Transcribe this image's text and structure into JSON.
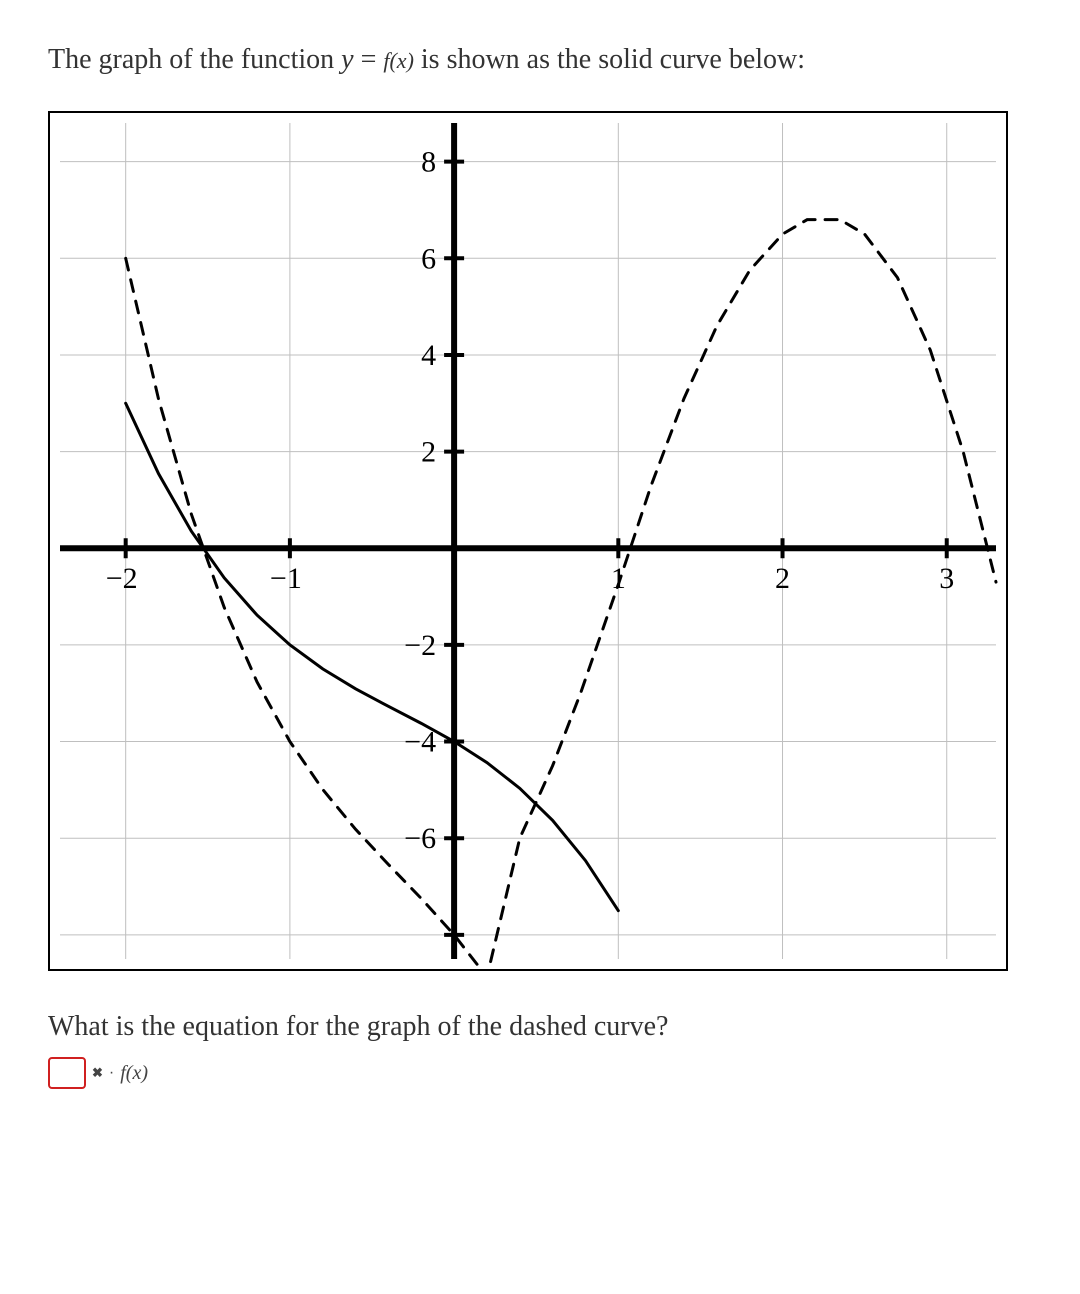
{
  "intro": {
    "prefix": "The graph of the function ",
    "var_y": "y",
    "eq": " = ",
    "fn": "f(x)",
    "suffix": " is shown as the solid curve below:"
  },
  "chart": {
    "type": "line",
    "xlim": [
      -2.4,
      3.3
    ],
    "ylim": [
      -8.5,
      8.8
    ],
    "xtick_step": 1,
    "ytick_step": 2,
    "xticks": [
      -2,
      -1,
      1,
      2,
      3
    ],
    "yticks": [
      8,
      6,
      4,
      2,
      -2,
      -4,
      -6
    ],
    "background_color": "#ffffff",
    "grid_color": "#bfbfbf",
    "grid_width": 1,
    "axis_color": "#000000",
    "axis_width": 6,
    "tick_color": "#000000",
    "tick_length": 10,
    "tick_width": 4,
    "axis_label_fontsize": 30,
    "axis_label_color": "#000000",
    "solid_curve": {
      "color": "#000000",
      "width": 3,
      "dash": "none",
      "points": [
        [
          -2.0,
          3.0
        ],
        [
          -1.8,
          1.544
        ],
        [
          -1.6,
          0.352
        ],
        [
          -1.4,
          -0.612
        ],
        [
          -1.2,
          -1.384
        ],
        [
          -1.0,
          -2.0
        ],
        [
          -0.8,
          -2.496
        ],
        [
          -0.6,
          -2.908
        ],
        [
          -0.4,
          -3.272
        ],
        [
          -0.2,
          -3.624
        ],
        [
          0.0,
          -4.0
        ],
        [
          0.2,
          -4.436
        ],
        [
          0.4,
          -4.968
        ],
        [
          0.6,
          -5.632
        ],
        [
          0.8,
          -6.464
        ],
        [
          1.0,
          -7.5
        ]
      ]
    },
    "dashed_curve": {
      "color": "#000000",
      "width": 3,
      "dash": "12 10",
      "points": [
        [
          -2.0,
          6.0
        ],
        [
          -1.8,
          3.088
        ],
        [
          -1.6,
          0.704
        ],
        [
          -1.4,
          -1.224
        ],
        [
          -1.2,
          -2.768
        ],
        [
          -1.0,
          -4.0
        ],
        [
          -0.8,
          -4.992
        ],
        [
          -0.6,
          -5.816
        ],
        [
          -0.4,
          -6.544
        ],
        [
          -0.2,
          -7.248
        ],
        [
          0.0,
          -8.0
        ],
        [
          0.2,
          -8.872
        ],
        [
          0.4,
          -6.0
        ],
        [
          0.6,
          -4.5
        ],
        [
          0.77,
          -3.0
        ],
        [
          1.0,
          -0.75
        ],
        [
          1.2,
          1.3
        ],
        [
          1.4,
          3.1
        ],
        [
          1.6,
          4.6
        ],
        [
          1.8,
          5.75
        ],
        [
          2.0,
          6.5
        ],
        [
          2.15,
          6.8
        ],
        [
          2.35,
          6.8
        ],
        [
          2.5,
          6.5
        ],
        [
          2.7,
          5.6
        ],
        [
          2.9,
          4.1
        ],
        [
          3.1,
          2.0
        ],
        [
          3.3,
          -0.7
        ]
      ]
    }
  },
  "question": "What is the equation for the graph of the dashed curve?",
  "answer": {
    "box_border_color": "#d02020",
    "x_symbol": "✖",
    "dot": "·",
    "fx": "f(x)"
  }
}
